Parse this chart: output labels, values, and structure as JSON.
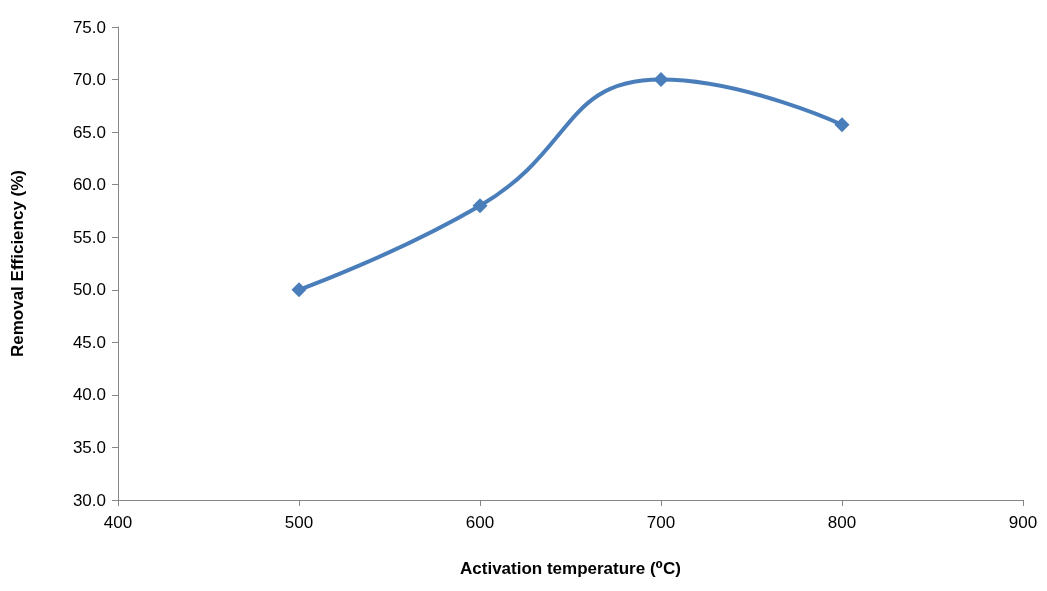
{
  "chart_data": {
    "type": "line",
    "xlabel": "Activation temperature (⁰C)",
    "ylabel": "Removal Efficiency (%)",
    "x": [
      500,
      600,
      700,
      800
    ],
    "series": [
      {
        "color": "#4a7ebb",
        "values": [
          50.0,
          58.0,
          70.0,
          65.7
        ]
      }
    ],
    "xlim": [
      400,
      900
    ],
    "xticks": [
      400,
      500,
      600,
      700,
      800,
      900
    ],
    "ylim": [
      30,
      75
    ],
    "yticks": [
      {
        "value": 30,
        "label": "30.0"
      },
      {
        "value": 35,
        "label": "35.0"
      },
      {
        "value": 40,
        "label": "40.0"
      },
      {
        "value": 45,
        "label": "45.0"
      },
      {
        "value": 50,
        "label": "50.0"
      },
      {
        "value": 55,
        "label": "55.0"
      },
      {
        "value": 60,
        "label": "60.0"
      },
      {
        "value": 65,
        "label": "65.0"
      },
      {
        "value": 70,
        "label": "70.0"
      },
      {
        "value": 75,
        "label": "75.0"
      }
    ],
    "grid": false,
    "marker": "diamond",
    "line_style": "solid"
  }
}
